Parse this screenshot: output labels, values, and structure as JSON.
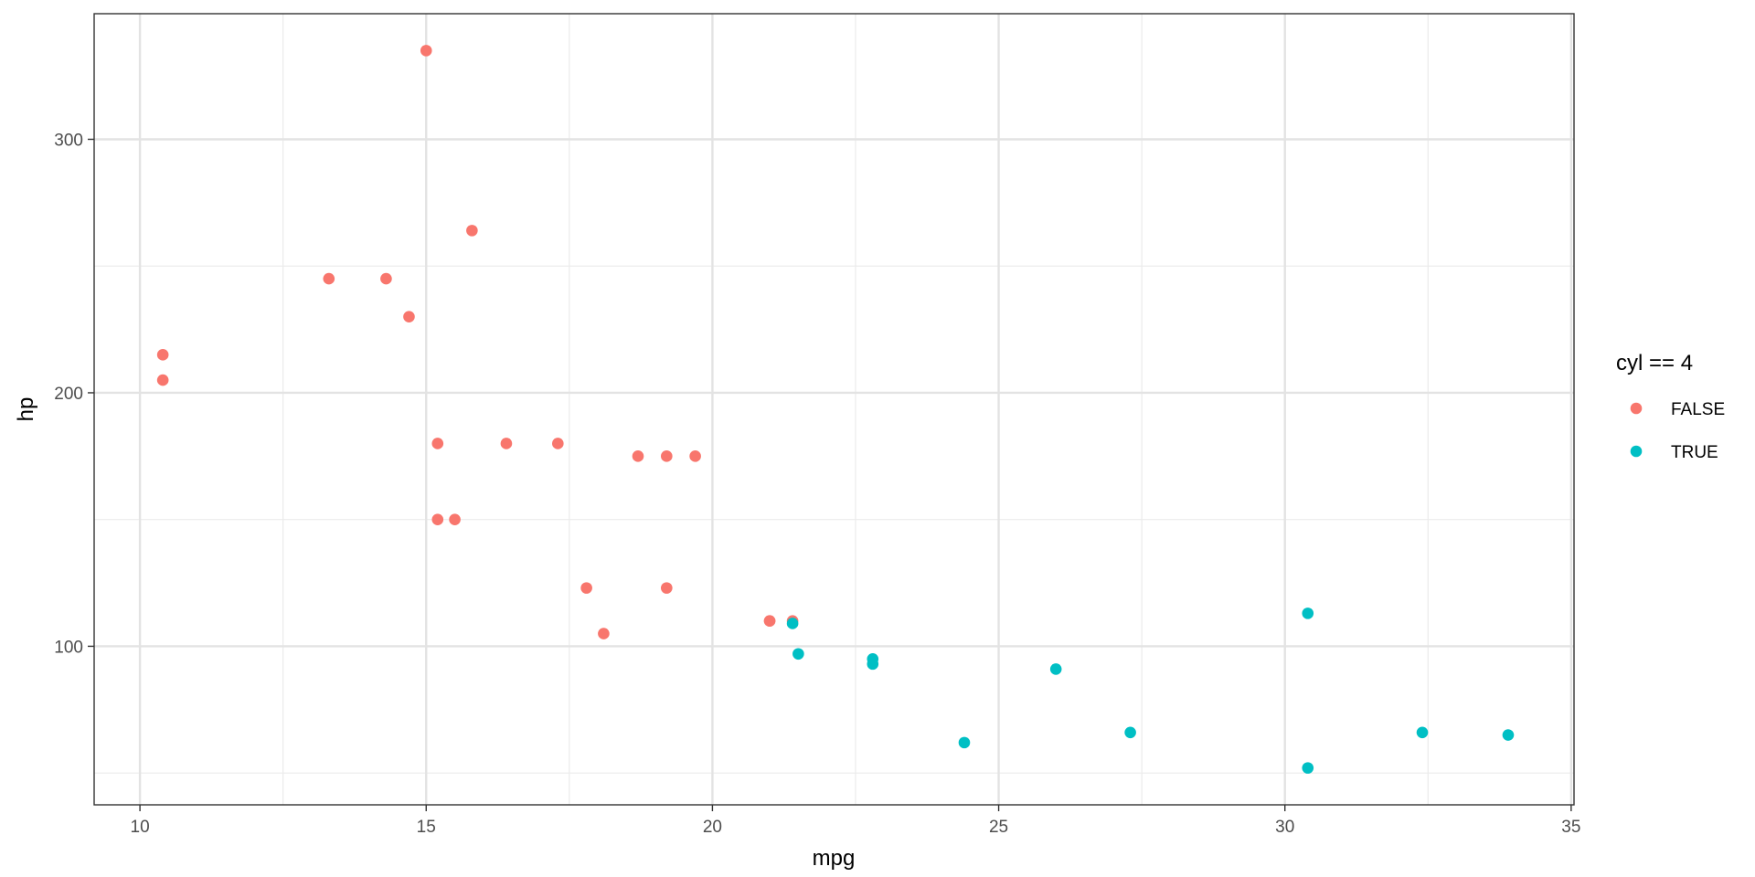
{
  "chart_data": {
    "type": "scatter",
    "xlabel": "mpg",
    "ylabel": "hp",
    "xlim": [
      9.2,
      35.05
    ],
    "ylim": [
      37.45,
      349.55
    ],
    "x_ticks": [
      10,
      15,
      20,
      25,
      30,
      35
    ],
    "x_tick_labels": [
      "10",
      "15",
      "20",
      "25",
      "30",
      "35"
    ],
    "x_minor_ticks": [
      12.5,
      17.5,
      22.5,
      27.5,
      32.5
    ],
    "y_ticks": [
      100,
      200,
      300
    ],
    "y_tick_labels": [
      "100",
      "200",
      "300"
    ],
    "y_minor_ticks": [
      50,
      150,
      250
    ],
    "grid": true,
    "legend": {
      "title": "cyl == 4",
      "position": "right"
    },
    "series": [
      {
        "name": "FALSE",
        "color": "#F8766D",
        "points": [
          [
            21.0,
            110
          ],
          [
            21.0,
            110
          ],
          [
            21.4,
            110
          ],
          [
            18.7,
            175
          ],
          [
            18.1,
            105
          ],
          [
            14.3,
            245
          ],
          [
            19.2,
            123
          ],
          [
            17.8,
            123
          ],
          [
            16.4,
            180
          ],
          [
            17.3,
            180
          ],
          [
            15.2,
            180
          ],
          [
            10.4,
            205
          ],
          [
            10.4,
            215
          ],
          [
            14.7,
            230
          ],
          [
            15.5,
            150
          ],
          [
            15.2,
            150
          ],
          [
            13.3,
            245
          ],
          [
            19.2,
            175
          ],
          [
            15.8,
            264
          ],
          [
            19.7,
            175
          ],
          [
            15.0,
            335
          ]
        ]
      },
      {
        "name": "TRUE",
        "color": "#00BFC4",
        "points": [
          [
            22.8,
            93
          ],
          [
            24.4,
            62
          ],
          [
            22.8,
            95
          ],
          [
            32.4,
            66
          ],
          [
            30.4,
            52
          ],
          [
            33.9,
            65
          ],
          [
            21.5,
            97
          ],
          [
            27.3,
            66
          ],
          [
            26.0,
            91
          ],
          [
            30.4,
            113
          ],
          [
            21.4,
            109
          ]
        ]
      }
    ]
  }
}
